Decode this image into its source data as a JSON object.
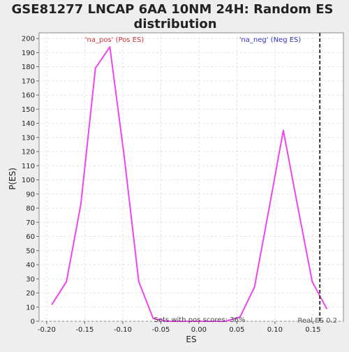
{
  "chart_data": {
    "type": "line",
    "title_line1": "GSE81277 LNCAP 6AA 10NM 24H: Random ES",
    "title_line2": "distribution",
    "xlabel": "ES",
    "ylabel": "P(ES)",
    "xlim": [
      -0.21,
      0.19
    ],
    "ylim": [
      0,
      204
    ],
    "x_ticks": [
      -0.2,
      -0.15,
      -0.1,
      -0.05,
      0.0,
      0.05,
      0.1,
      0.15
    ],
    "x_tick_labels": [
      "-0.20",
      "-0.15",
      "-0.10",
      "-0.05",
      "0.00",
      "0.05",
      "0.10",
      "0.15"
    ],
    "y_ticks": [
      0,
      10,
      20,
      30,
      40,
      50,
      60,
      70,
      80,
      90,
      100,
      110,
      120,
      130,
      140,
      150,
      160,
      170,
      180,
      190,
      200
    ],
    "grid": true,
    "series": [
      {
        "color": "#ee44ee",
        "x": [
          -0.193,
          -0.174,
          -0.155,
          -0.136,
          -0.117,
          -0.098,
          -0.079,
          -0.06,
          -0.041,
          -0.022,
          -0.003,
          0.016,
          0.035,
          0.054,
          0.073,
          0.092,
          0.111,
          0.13,
          0.149,
          0.168
        ],
        "y": [
          12,
          28,
          83,
          179,
          194,
          116,
          28,
          2,
          0,
          0,
          0,
          0,
          0,
          3,
          24,
          79,
          135,
          81,
          28,
          9
        ]
      }
    ],
    "real_es": 0.159,
    "real_es_label": "Real ES 0.2",
    "annotations": {
      "pos_label": "'na_pos' (Pos ES)",
      "neg_label": "'na_neg' (Neg ES)",
      "pos_color": "#cc3333",
      "neg_color": "#3333bb",
      "bottom_text": "Sets with pos scores: 36%"
    }
  }
}
